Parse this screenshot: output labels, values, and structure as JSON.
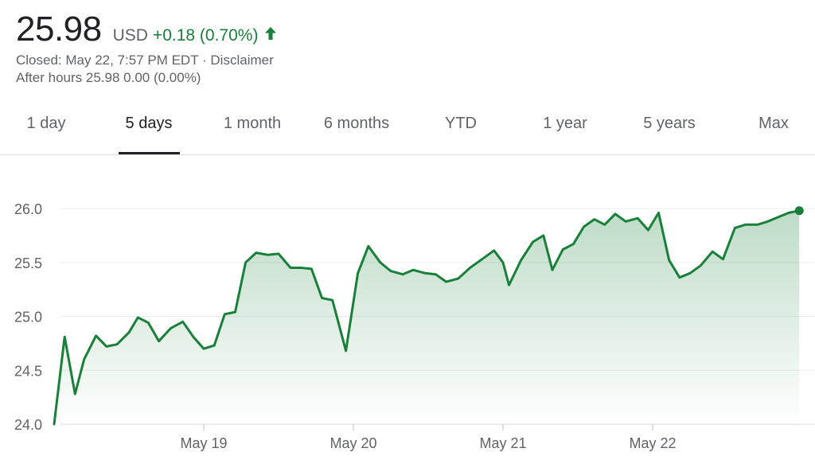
{
  "quote": {
    "price": "25.98",
    "currency": "USD",
    "change": "+0.18 (0.70%)",
    "change_color": "#188038",
    "direction_icon": "arrow-up-icon",
    "closed_text": "Closed: May 22, 7:57 PM EDT · ",
    "disclaimer": "Disclaimer",
    "after_hours": "After hours 25.98 0.00 (0.00%)"
  },
  "tabs": [
    {
      "label": "1 day"
    },
    {
      "label": "5 days",
      "active": true
    },
    {
      "label": "1 month"
    },
    {
      "label": "6 months"
    },
    {
      "label": "YTD"
    },
    {
      "label": "1 year"
    },
    {
      "label": "5 years"
    },
    {
      "label": "Max"
    }
  ],
  "chart_data": {
    "type": "area",
    "line_color": "#188038",
    "ylim": [
      24.0,
      26.2
    ],
    "yticks": [
      "26.0",
      "25.5",
      "25.0",
      "24.5",
      "24.0"
    ],
    "ytick_values": [
      26.0,
      25.5,
      25.0,
      24.5,
      24.0
    ],
    "xlim": [
      0,
      5
    ],
    "xticks": [
      {
        "x": 1,
        "label": "May 19"
      },
      {
        "x": 2,
        "label": "May 20"
      },
      {
        "x": 3,
        "label": "May 21"
      },
      {
        "x": 4,
        "label": "May 22"
      }
    ],
    "grid": true,
    "points": [
      [
        0.0,
        24.0
      ],
      [
        0.07,
        24.81
      ],
      [
        0.14,
        24.28
      ],
      [
        0.2,
        24.6
      ],
      [
        0.28,
        24.82
      ],
      [
        0.35,
        24.72
      ],
      [
        0.42,
        24.74
      ],
      [
        0.5,
        24.85
      ],
      [
        0.56,
        24.99
      ],
      [
        0.63,
        24.94
      ],
      [
        0.7,
        24.77
      ],
      [
        0.78,
        24.89
      ],
      [
        0.86,
        24.95
      ],
      [
        0.93,
        24.81
      ],
      [
        1.0,
        24.7
      ],
      [
        1.07,
        24.73
      ],
      [
        1.14,
        25.02
      ],
      [
        1.21,
        25.04
      ],
      [
        1.28,
        25.5
      ],
      [
        1.35,
        25.59
      ],
      [
        1.43,
        25.57
      ],
      [
        1.5,
        25.58
      ],
      [
        1.58,
        25.45
      ],
      [
        1.65,
        25.45
      ],
      [
        1.72,
        25.44
      ],
      [
        1.79,
        25.17
      ],
      [
        1.86,
        25.15
      ],
      [
        1.95,
        24.68
      ],
      [
        2.03,
        25.4
      ],
      [
        2.1,
        25.65
      ],
      [
        2.18,
        25.5
      ],
      [
        2.25,
        25.42
      ],
      [
        2.33,
        25.39
      ],
      [
        2.4,
        25.43
      ],
      [
        2.48,
        25.4
      ],
      [
        2.55,
        25.39
      ],
      [
        2.62,
        25.32
      ],
      [
        2.7,
        25.35
      ],
      [
        2.78,
        25.45
      ],
      [
        2.86,
        25.53
      ],
      [
        2.94,
        25.61
      ],
      [
        3.0,
        25.5
      ],
      [
        3.04,
        25.29
      ],
      [
        3.12,
        25.52
      ],
      [
        3.2,
        25.69
      ],
      [
        3.27,
        25.75
      ],
      [
        3.33,
        25.43
      ],
      [
        3.4,
        25.62
      ],
      [
        3.47,
        25.67
      ],
      [
        3.54,
        25.83
      ],
      [
        3.61,
        25.9
      ],
      [
        3.68,
        25.85
      ],
      [
        3.75,
        25.95
      ],
      [
        3.82,
        25.88
      ],
      [
        3.9,
        25.91
      ],
      [
        3.97,
        25.8
      ],
      [
        4.04,
        25.96
      ],
      [
        4.11,
        25.52
      ],
      [
        4.18,
        25.36
      ],
      [
        4.25,
        25.4
      ],
      [
        4.32,
        25.47
      ],
      [
        4.4,
        25.6
      ],
      [
        4.47,
        25.53
      ],
      [
        4.55,
        25.82
      ],
      [
        4.62,
        25.85
      ],
      [
        4.7,
        25.85
      ],
      [
        4.77,
        25.88
      ],
      [
        4.84,
        25.92
      ],
      [
        4.91,
        25.96
      ],
      [
        4.98,
        25.98
      ]
    ]
  }
}
